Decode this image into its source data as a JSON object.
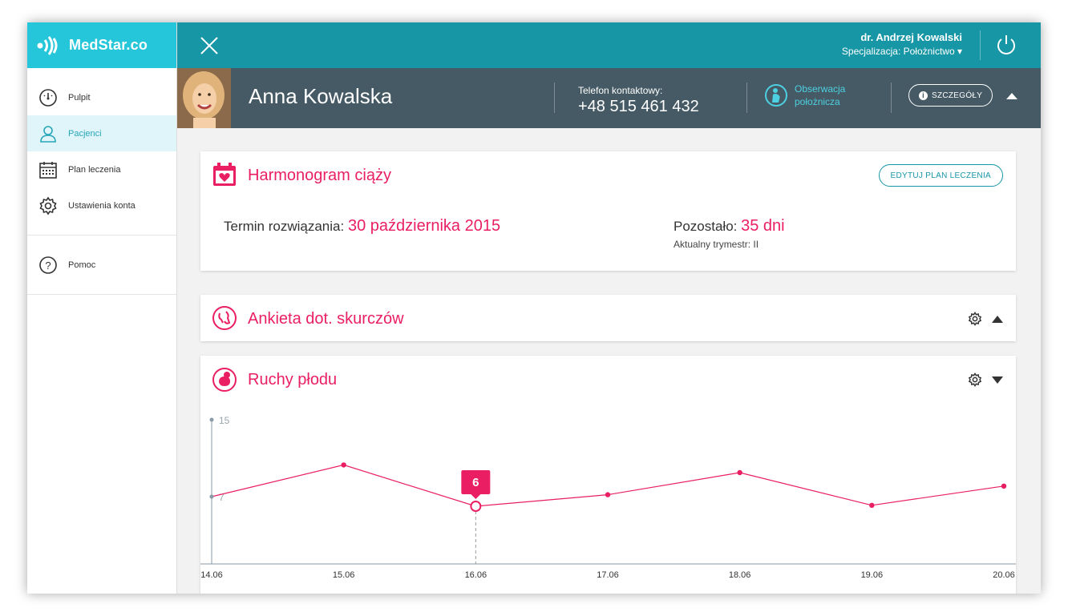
{
  "app": {
    "logo_text": "MedStar.co"
  },
  "topbar": {
    "doctor_name": "dr. Andrzej Kowalski",
    "specialization": "Specjalizacja: Położnictwo ▾"
  },
  "sidebar": {
    "items": [
      {
        "label": "Pulpit",
        "icon": "gauge-icon"
      },
      {
        "label": "Pacjenci",
        "icon": "person-icon",
        "active": true
      },
      {
        "label": "Plan leczenia",
        "icon": "calendar-icon"
      },
      {
        "label": "Ustawienia konta",
        "icon": "gear-icon"
      }
    ],
    "help": {
      "label": "Pomoc",
      "icon": "question-icon"
    }
  },
  "patient": {
    "name": "Anna Kowalska",
    "phone_label": "Telefon kontaktowy:",
    "phone": "+48 515 461 432",
    "observation_line1": "Obserwacja",
    "observation_line2": "położnicza",
    "details_label": "SZCZEGÓŁY"
  },
  "schedule": {
    "title": "Harmonogram ciąży",
    "edit_label": "EDYTUJ PLAN LECZENIA",
    "due_label": "Termin rozwiązania:",
    "due_value": "30 października 2015",
    "remaining_label": "Pozostało:",
    "remaining_value": "35 dni",
    "trimester": "Aktualny trymestr: II"
  },
  "contractions": {
    "title": "Ankieta dot. skurczów"
  },
  "movements": {
    "title": "Ruchy płodu"
  },
  "colors": {
    "accent": "#e91e63",
    "teal": "#1796a6",
    "logo_bg": "#26c6da",
    "patient_bar": "#455a64"
  },
  "chart_data": {
    "type": "line",
    "categories": [
      "14.06",
      "15.06",
      "16.06",
      "17.06",
      "18.06",
      "19.06",
      "20.06"
    ],
    "series": [
      {
        "values": [
          7,
          10.3,
          6,
          7.2,
          9.5,
          6.1,
          8.1
        ]
      }
    ],
    "y_ticks": [
      15,
      7
    ],
    "ylim": [
      0,
      15
    ],
    "highlight": {
      "index": 2,
      "label": "6"
    }
  }
}
